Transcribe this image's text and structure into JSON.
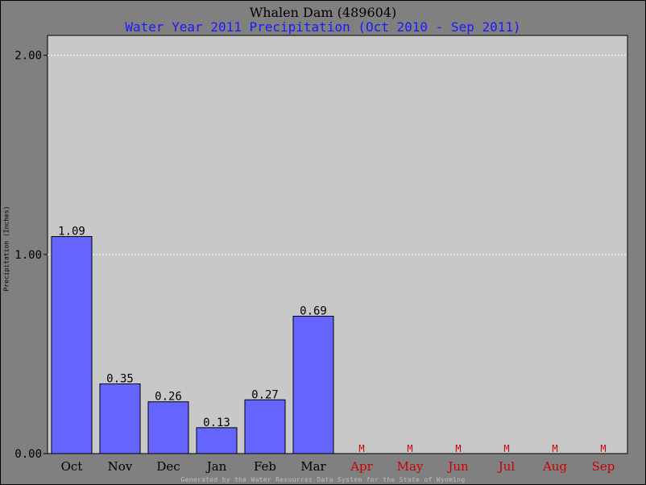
{
  "chart_data": {
    "type": "bar",
    "title": "Whalen Dam (489604)",
    "subtitle": "Water Year 2011 Precipitation (Oct 2010 - Sep 2011)",
    "ylabel": "Precipitation (Inches)",
    "xlabel": "",
    "ylim": [
      0,
      2.1
    ],
    "yticks": [
      "0.00",
      "1.00",
      "2.00"
    ],
    "ytick_values": [
      0,
      1,
      2
    ],
    "categories": [
      "Oct",
      "Nov",
      "Dec",
      "Jan",
      "Feb",
      "Mar",
      "Apr",
      "May",
      "Jun",
      "Jul",
      "Aug",
      "Sep"
    ],
    "values": [
      1.09,
      0.35,
      0.26,
      0.13,
      0.27,
      0.69,
      null,
      null,
      null,
      null,
      null,
      null
    ],
    "data_labels": [
      "1.09",
      "0.35",
      "0.26",
      "0.13",
      "0.27",
      "0.69",
      "M",
      "M",
      "M",
      "M",
      "M",
      "M"
    ],
    "missing_marker": "M",
    "grid": true,
    "legend": "none"
  },
  "footer": "Generated by the Water Resources Data System for the State of Wyoming",
  "colors": {
    "background": "#808080",
    "plot_area": "#c8c8c8",
    "bar": "#6464ff",
    "missing": "#cc0000",
    "present_label": "#000000",
    "subtitle": "#1a1aff",
    "grid": "#ffffff"
  }
}
